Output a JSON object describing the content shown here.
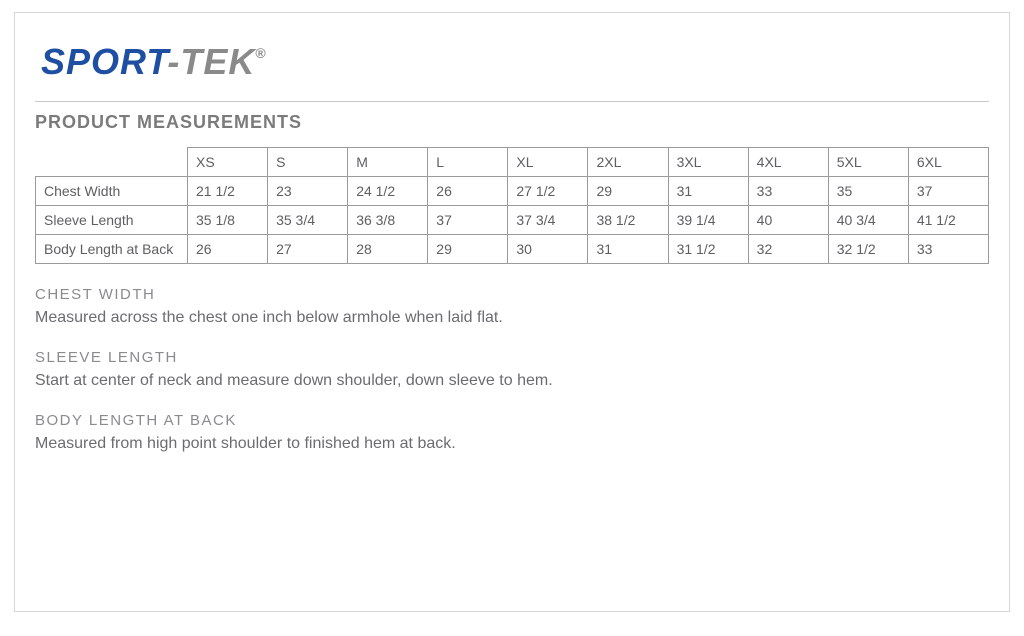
{
  "brand": {
    "sport": "SPORT",
    "dash": "-",
    "tek": "TEK",
    "reg": "®"
  },
  "section_title": "PRODUCT MEASUREMENTS",
  "table": {
    "sizes": [
      "XS",
      "S",
      "M",
      "L",
      "XL",
      "2XL",
      "3XL",
      "4XL",
      "5XL",
      "6XL"
    ],
    "rows": [
      {
        "label": "Chest Width",
        "cells": [
          "21 1/2",
          "23",
          "24 1/2",
          "26",
          "27 1/2",
          "29",
          "31",
          "33",
          "35",
          "37"
        ]
      },
      {
        "label": "Sleeve Length",
        "cells": [
          "35 1/8",
          "35 3/4",
          "36 3/8",
          "37",
          "37 3/4",
          "38 1/2",
          "39 1/4",
          "40",
          "40 3/4",
          "41 1/2"
        ]
      },
      {
        "label": "Body Length at Back",
        "cells": [
          "26",
          "27",
          "28",
          "29",
          "30",
          "31",
          "31 1/2",
          "32",
          "32 1/2",
          "33"
        ]
      }
    ]
  },
  "defs": [
    {
      "title": "CHEST WIDTH",
      "text": "Measured across the chest one inch below armhole when laid flat."
    },
    {
      "title": "SLEEVE LENGTH",
      "text": "Start at center of neck and measure down shoulder, down sleeve to hem."
    },
    {
      "title": "BODY LENGTH AT BACK",
      "text": "Measured from high point shoulder to finished hem at back."
    }
  ],
  "style": {
    "border_color": "#d6d6d6",
    "table_border_color": "#9b9b9b",
    "heading_color": "#7b7b7b",
    "text_color": "#6c6c70",
    "brand_blue": "#1e4fa3",
    "brand_gray": "#8a8a8a",
    "font_family": "Helvetica, Arial, sans-serif"
  }
}
